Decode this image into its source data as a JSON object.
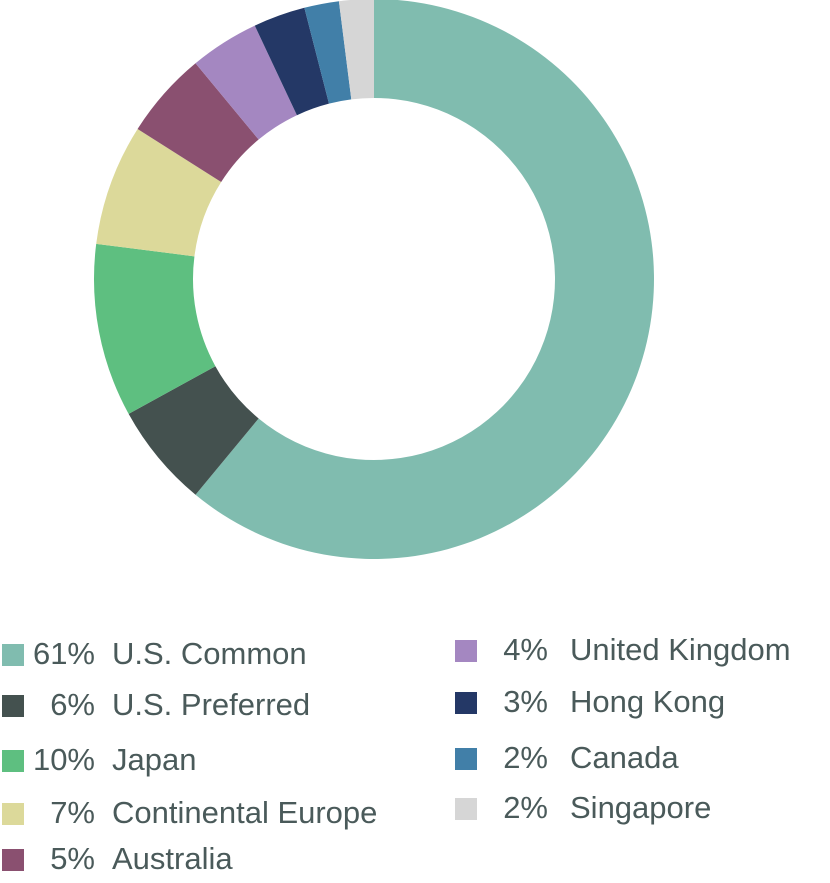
{
  "chart_data": {
    "type": "donut",
    "categories": [
      "U.S. Common",
      "U.S. Preferred",
      "Japan",
      "Continental Europe",
      "Australia",
      "United Kingdom",
      "Hong Kong",
      "Canada",
      "Singapore"
    ],
    "values": [
      61,
      6,
      10,
      7,
      5,
      4,
      3,
      2,
      2
    ],
    "value_labels": [
      "61%",
      "6%",
      "10%",
      "7%",
      "5%",
      "4%",
      "3%",
      "2%",
      "2%"
    ],
    "colors": [
      "#80bcaf",
      "#44514f",
      "#5ebf80",
      "#dcd99a",
      "#8a5070",
      "#a487c1",
      "#243866",
      "#417fa8",
      "#d6d6d6"
    ]
  }
}
